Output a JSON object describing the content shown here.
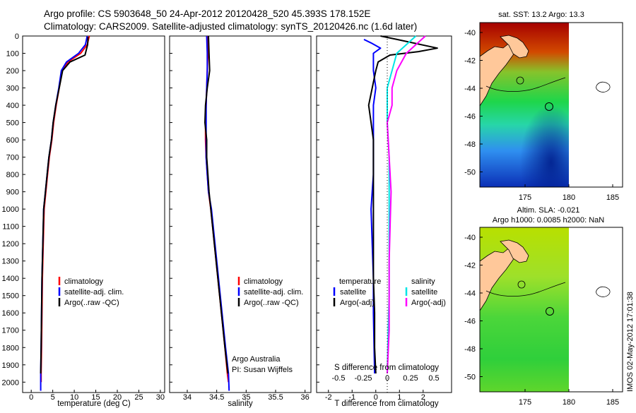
{
  "header": {
    "line1": "Argo profile: CS 5903648_50 24-Apr-2012 20120428_520 45.393S 178.152E",
    "line2": "Climatology: CARS2009. Satellite-adjusted climatology: synTS_20120426.nc (1.6d later)"
  },
  "colors": {
    "climatology": "#ff0000",
    "satellite": "#0000ff",
    "argo": "#000000",
    "sal_satellite": "#00e5e5",
    "sal_argo": "#ff00ff"
  },
  "depth_axis": {
    "ticks": [
      "0",
      "100",
      "200",
      "300",
      "400",
      "500",
      "600",
      "700",
      "800",
      "900",
      "1000",
      "1100",
      "1200",
      "1300",
      "1400",
      "1500",
      "1600",
      "1700",
      "1800",
      "1900",
      "2000"
    ],
    "range": [
      0,
      2060
    ]
  },
  "panels": {
    "temperature": {
      "xlabel": "temperature (deg C)",
      "xticks": [
        "0",
        "5",
        "10",
        "15",
        "20",
        "25",
        "30"
      ],
      "legend": [
        "climatology",
        "satellite-adj. clim.",
        "Argo(..raw -QC)"
      ]
    },
    "salinity": {
      "xlabel": "salinity",
      "xticks": [
        "34",
        "34.5",
        "35",
        "35.5",
        "36"
      ],
      "legend": [
        "climatology",
        "satellite-adj. clim.",
        "Argo(..raw -QC)"
      ],
      "note1": "Argo Australia",
      "note2": "PI: Susan Wijffels"
    },
    "difference": {
      "xlabel": "T difference from climatology",
      "top_label": "S difference from climatology",
      "xticks": [
        "-2",
        "-1",
        "0",
        "1",
        "2"
      ],
      "sticks": [
        "-0.5",
        "-0.25",
        "0",
        "0.25",
        "0.5"
      ],
      "legend_temp_title": "temperature",
      "legend_sal_title": "salinity",
      "legend_temp": [
        "satellite",
        "Argo(-adj)"
      ],
      "legend_sal": [
        "satellite",
        "Argo(-adj)"
      ]
    }
  },
  "maps": {
    "sst": {
      "title": "sat. SST: 13.2 Argo: 13.3"
    },
    "sla": {
      "title1": "Altim. SLA: -0.021",
      "title2": "Argo h1000: 0.0085 h2000: NaN"
    },
    "yticks": [
      "-40",
      "-42",
      "-44",
      "-46",
      "-48",
      "-50"
    ],
    "xticks": [
      "175",
      "180",
      "185"
    ]
  },
  "stamp": "IMOS 02-May-2012 17:01:38",
  "chart_data": [
    {
      "type": "line",
      "xlabel": "temperature (deg C)",
      "ylim": [
        2060,
        0
      ],
      "xlim": [
        -2,
        31
      ],
      "series": [
        {
          "name": "climatology",
          "x": [
            13.5,
            13.0,
            11.5,
            8.5,
            7.2,
            6.5,
            5.8,
            5.2,
            4.8,
            4.2,
            3.8,
            3.4,
            3.0,
            2.8,
            2.6,
            2.5,
            2.4,
            2.3,
            2.3
          ],
          "y": [
            0,
            50,
            100,
            150,
            200,
            300,
            400,
            500,
            600,
            700,
            800,
            900,
            1000,
            1200,
            1400,
            1600,
            1800,
            1950,
            2000
          ]
        },
        {
          "name": "satellite-adj. clim.",
          "x": [
            13.0,
            12.6,
            11.0,
            8.2,
            7.0,
            6.4,
            5.7,
            5.1,
            4.7,
            4.1,
            3.7,
            3.3,
            2.9,
            2.7,
            2.5,
            2.4,
            2.3,
            2.2,
            2.2
          ],
          "y": [
            0,
            50,
            100,
            150,
            200,
            300,
            400,
            500,
            600,
            700,
            800,
            900,
            1000,
            1200,
            1400,
            1600,
            1800,
            1950,
            2050
          ]
        },
        {
          "name": "Argo(..raw -QC)",
          "x": [
            13.2,
            13.1,
            12.5,
            9.0,
            7.3,
            6.5,
            5.7,
            5.1,
            4.7,
            4.1,
            3.7,
            3.3,
            2.9,
            2.7,
            2.5,
            2.4,
            2.3,
            2.2
          ],
          "y": [
            5,
            50,
            110,
            150,
            200,
            300,
            400,
            500,
            600,
            700,
            800,
            900,
            1000,
            1200,
            1400,
            1600,
            1800,
            1950
          ]
        }
      ]
    },
    {
      "type": "line",
      "xlabel": "salinity",
      "ylim": [
        2060,
        0
      ],
      "xlim": [
        33.7,
        36.1
      ],
      "series": [
        {
          "name": "climatology",
          "x": [
            34.35,
            34.35,
            34.34,
            34.33,
            34.32,
            34.31,
            34.31,
            34.32,
            34.34,
            34.36,
            34.4,
            34.46,
            34.52,
            34.58,
            34.64,
            34.68,
            34.7
          ],
          "y": [
            0,
            100,
            200,
            300,
            400,
            500,
            600,
            700,
            800,
            900,
            1000,
            1200,
            1400,
            1600,
            1800,
            1950,
            2000
          ]
        },
        {
          "name": "satellite-adj. clim.",
          "x": [
            34.33,
            34.34,
            34.34,
            34.33,
            34.32,
            34.32,
            34.32,
            34.32,
            34.34,
            34.36,
            34.41,
            34.47,
            34.53,
            34.59,
            34.65,
            34.7,
            34.71
          ],
          "y": [
            0,
            100,
            200,
            300,
            400,
            500,
            600,
            700,
            800,
            900,
            1000,
            1200,
            1400,
            1600,
            1800,
            1950,
            2050
          ]
        },
        {
          "name": "Argo(..raw -QC)",
          "x": [
            34.36,
            34.37,
            34.38,
            34.34,
            34.31,
            34.3,
            34.33,
            34.33,
            34.35,
            34.37,
            34.4,
            34.46,
            34.52,
            34.58,
            34.64,
            34.69
          ],
          "y": [
            0,
            100,
            200,
            300,
            400,
            500,
            600,
            700,
            800,
            900,
            1000,
            1200,
            1400,
            1600,
            1800,
            1950
          ]
        }
      ]
    },
    {
      "type": "line",
      "xlabel": "T difference from climatology",
      "ylim": [
        2060,
        0
      ],
      "xlim": [
        -2.5,
        3.2
      ],
      "series": [
        {
          "name": "temperature satellite",
          "x": [
            -0.5,
            -0.2,
            0.2,
            -0.1,
            -0.1,
            0.0,
            -0.1,
            -0.1,
            -0.1,
            -0.1,
            -0.1,
            -0.15,
            -0.2,
            -0.15,
            -0.1,
            -0.1,
            -0.05
          ],
          "y": [
            20,
            40,
            70,
            100,
            200,
            300,
            400,
            500,
            600,
            700,
            800,
            900,
            1000,
            1200,
            1400,
            1600,
            1950
          ]
        },
        {
          "name": "temperature Argo(-adj)",
          "x": [
            0.2,
            0.9,
            2.6,
            1.8,
            0.6,
            0.1,
            0.0,
            -0.3,
            -0.2,
            -0.1,
            -0.1,
            -0.1,
            -0.1,
            -0.1,
            -0.1,
            -0.05,
            -0.05,
            0.0
          ],
          "y": [
            0,
            20,
            70,
            90,
            110,
            150,
            200,
            400,
            500,
            600,
            800,
            900,
            1000,
            1200,
            1400,
            1600,
            1800,
            1950
          ]
        },
        {
          "name": "salinity satellite",
          "x": [
            0.3,
            0.2,
            0.1,
            0.05,
            0.0,
            0.0,
            0.0,
            0.02,
            0.02,
            0.02,
            0.02,
            0.02,
            0.01,
            0.0
          ],
          "y": [
            0,
            50,
            100,
            200,
            300,
            400,
            500,
            700,
            900,
            1100,
            1300,
            1500,
            1700,
            1950
          ]
        },
        {
          "name": "salinity Argo(-adj)",
          "x": [
            0.4,
            0.3,
            0.2,
            0.1,
            0.05,
            0.05,
            0.0,
            0.02,
            0.04,
            0.03,
            0.02,
            0.02,
            0.02,
            0.0
          ],
          "y": [
            0,
            50,
            100,
            200,
            300,
            400,
            500,
            700,
            900,
            1100,
            1300,
            1500,
            1700,
            1950
          ]
        }
      ]
    }
  ]
}
